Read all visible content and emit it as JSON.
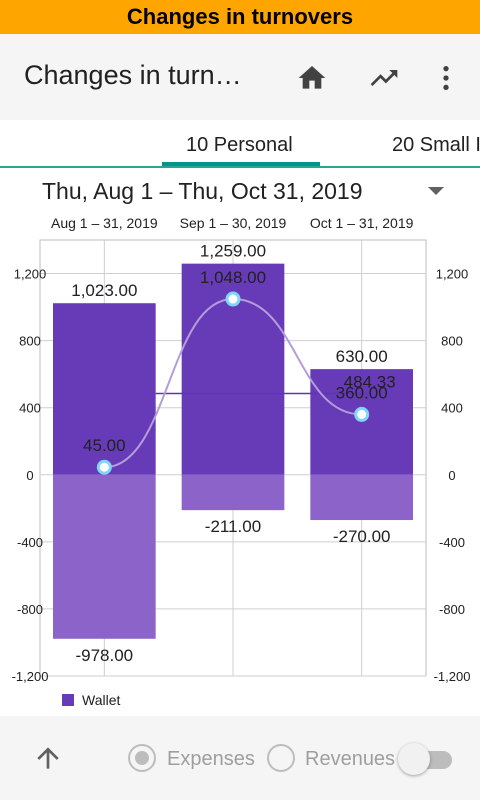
{
  "banner": {
    "title": "Changes in turnovers"
  },
  "app_bar": {
    "title": "Changes in turn…",
    "icons": [
      "home-icon",
      "trending-up-icon",
      "more-vert-icon"
    ]
  },
  "tabs": [
    {
      "label": "10 Personal",
      "selected": true
    },
    {
      "label": "20 Small I",
      "selected": false
    }
  ],
  "date_range": {
    "label": "Thu, Aug 1 – Thu, Oct 31, 2019"
  },
  "chart_data": {
    "type": "bar",
    "categories": [
      "Aug 1 – 31, 2019",
      "Sep 1 – 30, 2019",
      "Oct 1 – 31, 2019"
    ],
    "series": [
      {
        "name": "Wallet",
        "kind": "bar-positive",
        "values": [
          1023,
          1259,
          630
        ],
        "labels": [
          "1,023.00",
          "1,259.00",
          "630.00"
        ]
      },
      {
        "name": "Wallet",
        "kind": "bar-negative",
        "values": [
          -978,
          -211,
          -270
        ],
        "labels": [
          "-978.00",
          "-211.00",
          "-270.00"
        ]
      },
      {
        "name": "Wallet",
        "kind": "line",
        "values": [
          45,
          1048,
          360
        ],
        "labels": [
          "45.00",
          "1,048.00",
          "360.00"
        ]
      }
    ],
    "average": {
      "value": 484.33,
      "label": "484.33"
    },
    "ylim": [
      -1200,
      1400
    ],
    "yticks": [
      -1200,
      -800,
      -400,
      0,
      400,
      800,
      1200
    ],
    "ytick_labels": [
      "-1,200",
      "-800",
      "-400",
      "0",
      "400",
      "800",
      "1,200"
    ],
    "grid": true,
    "legend_position": "bottom-left",
    "colors": {
      "positive": "#673ab7",
      "negative": "#8b63c9",
      "line": "#b39ddb",
      "point": "#b3e5fc"
    }
  },
  "legend": {
    "label": "Wallet"
  },
  "bottom_bar": {
    "expenses_label": "Expenses",
    "revenues_label": "Revenues",
    "expenses_selected": true,
    "toggle_on": false
  }
}
